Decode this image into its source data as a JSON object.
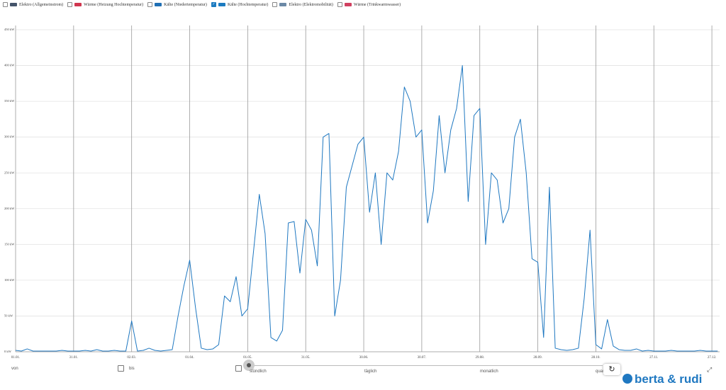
{
  "chart_data": {
    "type": "line",
    "legend": [
      {
        "label": "Elektro (Allgemeinstrom)",
        "color": "#44546a",
        "checked": false
      },
      {
        "label": "Wärme (Heizung Hochtemperatur)",
        "color": "#d0364f",
        "checked": false
      },
      {
        "label": "Kälte (Niedertemperatur)",
        "color": "#1f6fb4",
        "checked": false
      },
      {
        "label": "Kälte (Hochtemperatur)",
        "color": "#1c7bc0",
        "checked": true
      },
      {
        "label": "Elektro (Elektromobilität)",
        "color": "#6c89a6",
        "checked": false
      },
      {
        "label": "Wärme (Trinkwarmwasser)",
        "color": "#d04060",
        "checked": false
      }
    ],
    "color": "#1f78c1",
    "x": [
      "01.01.",
      "04.01.",
      "07.01.",
      "10.01.",
      "13.01.",
      "16.01.",
      "19.01.",
      "22.01.",
      "25.01.",
      "28.01.",
      "31.01.",
      "03.02.",
      "06.02.",
      "09.02.",
      "12.02.",
      "15.02.",
      "18.02.",
      "21.02.",
      "24.02.",
      "27.02.",
      "02.03.",
      "05.03.",
      "08.03.",
      "11.03.",
      "14.03.",
      "17.03.",
      "20.03.",
      "23.03.",
      "26.03.",
      "29.03.",
      "01.04.",
      "04.04.",
      "07.04.",
      "10.04.",
      "13.04.",
      "16.04.",
      "19.04.",
      "22.04.",
      "25.04.",
      "28.04.",
      "01.05.",
      "04.05.",
      "07.05.",
      "10.05.",
      "13.05.",
      "16.05.",
      "19.05.",
      "22.05.",
      "25.05.",
      "28.05.",
      "31.05.",
      "03.06.",
      "06.06.",
      "09.06.",
      "12.06.",
      "15.06.",
      "18.06.",
      "21.06.",
      "24.06.",
      "27.06.",
      "30.06.",
      "03.07.",
      "06.07.",
      "09.07.",
      "12.07.",
      "15.07.",
      "18.07.",
      "21.07.",
      "24.07.",
      "27.07.",
      "30.07.",
      "02.08.",
      "05.08.",
      "08.08.",
      "11.08.",
      "14.08.",
      "17.08.",
      "20.08.",
      "23.08.",
      "26.08.",
      "29.08.",
      "01.09.",
      "04.09.",
      "07.09.",
      "10.09.",
      "13.09.",
      "16.09.",
      "19.09.",
      "22.09.",
      "25.09.",
      "28.09.",
      "01.10.",
      "04.10.",
      "07.10.",
      "10.10.",
      "13.10.",
      "16.10.",
      "19.10.",
      "22.10.",
      "25.10.",
      "28.10.",
      "31.10.",
      "03.11.",
      "06.11.",
      "09.11.",
      "12.11.",
      "15.11.",
      "18.11.",
      "21.11.",
      "24.11.",
      "27.11.",
      "30.11.",
      "03.12.",
      "06.12.",
      "09.12.",
      "12.12.",
      "15.12.",
      "18.12.",
      "21.12.",
      "24.12.",
      "27.12.",
      "30.12."
    ],
    "values": [
      2,
      1,
      4,
      1,
      1,
      1,
      1,
      1,
      2,
      1,
      1,
      1,
      2,
      1,
      3,
      1,
      1,
      2,
      1,
      1,
      43,
      1,
      2,
      5,
      2,
      1,
      2,
      3,
      50,
      92,
      128,
      62,
      5,
      3,
      4,
      10,
      78,
      70,
      105,
      50,
      60,
      140,
      220,
      165,
      20,
      15,
      30,
      180,
      182,
      110,
      185,
      170,
      120,
      300,
      305,
      50,
      100,
      230,
      260,
      290,
      300,
      195,
      250,
      150,
      250,
      240,
      280,
      370,
      350,
      300,
      310,
      180,
      225,
      330,
      250,
      310,
      340,
      400,
      210,
      330,
      340,
      150,
      250,
      240,
      180,
      200,
      300,
      325,
      250,
      130,
      125,
      20,
      230,
      5,
      3,
      2,
      3,
      5,
      75,
      170,
      10,
      4,
      45,
      8,
      3,
      2,
      2,
      4,
      1,
      2,
      1,
      1,
      1,
      2,
      1,
      1,
      1,
      1,
      2,
      1,
      1,
      1
    ],
    "xlim": [
      "01.01.",
      "31.12."
    ],
    "xticks": [
      "01.01.",
      "31.01.",
      "02.03.",
      "01.04.",
      "01.05.",
      "31.05.",
      "30.06.",
      "30.07.",
      "29.08.",
      "28.09.",
      "28.10.",
      "27.11.",
      "27.12."
    ],
    "ylim": [
      0,
      450
    ],
    "yticks": [
      {
        "value": 0,
        "label": "0 kW"
      },
      {
        "value": 50,
        "label": "50 kW"
      },
      {
        "value": 100,
        "label": "100 kW"
      },
      {
        "value": 150,
        "label": "150 kW"
      },
      {
        "value": 200,
        "label": "200 kW"
      },
      {
        "value": 250,
        "label": "250 kW"
      },
      {
        "value": 300,
        "label": "300 kW"
      },
      {
        "value": 350,
        "label": "350 kW"
      },
      {
        "value": 400,
        "label": "400 kW"
      },
      {
        "value": 450,
        "label": "450 kW"
      }
    ],
    "grid": true
  },
  "controls": {
    "from_label": "von",
    "to_label": "bis",
    "resolutions": [
      "stündlich",
      "täglich",
      "monatlich",
      "quar"
    ],
    "logo": "berta & rudi"
  }
}
